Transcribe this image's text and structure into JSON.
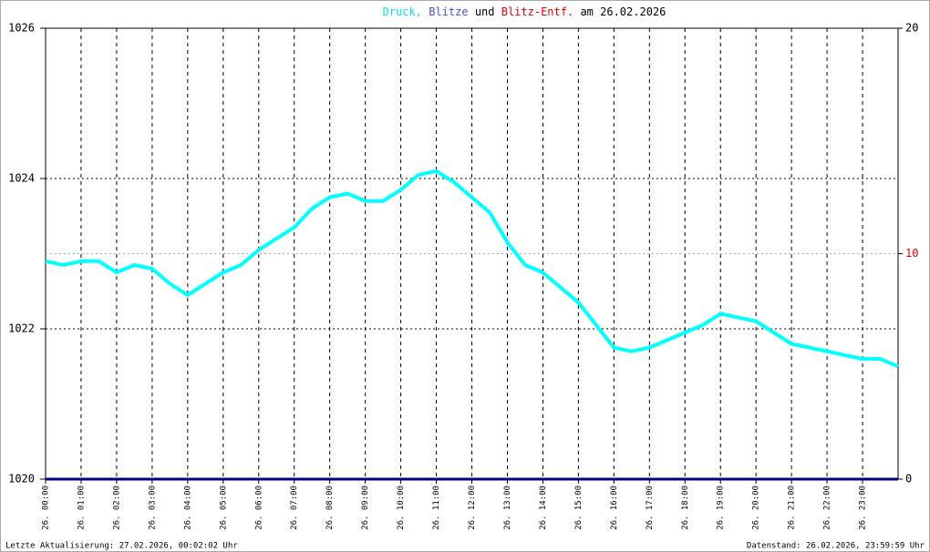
{
  "chart_data": {
    "type": "line",
    "title": [
      {
        "text": "Druck,",
        "color": "#00e0e0"
      },
      {
        "text": "Blitze",
        "color": "#5050c0"
      },
      {
        "text": "und",
        "color": "#000000"
      },
      {
        "text": "Blitz-Entf.",
        "color": "#e00000"
      },
      {
        "text": "am 26.02.2026",
        "color": "#000000"
      }
    ],
    "footer_left": "Letzte Aktualisierung: 27.02.2026, 00:02:02 Uhr",
    "footer_right": "Datenstand: 26.02.2026, 23:59:59 Uhr",
    "xlim": [
      0,
      24
    ],
    "xticks": [
      {
        "value": 0,
        "label": "26. 00:00"
      },
      {
        "value": 1,
        "label": "26. 01:00"
      },
      {
        "value": 2,
        "label": "26. 02:00"
      },
      {
        "value": 3,
        "label": "26. 03:00"
      },
      {
        "value": 4,
        "label": "26. 04:00"
      },
      {
        "value": 5,
        "label": "26. 05:00"
      },
      {
        "value": 6,
        "label": "26. 06:00"
      },
      {
        "value": 7,
        "label": "26. 07:00"
      },
      {
        "value": 8,
        "label": "26. 08:00"
      },
      {
        "value": 9,
        "label": "26. 09:00"
      },
      {
        "value": 10,
        "label": "26. 10:00"
      },
      {
        "value": 11,
        "label": "26. 11:00"
      },
      {
        "value": 12,
        "label": "26. 12:00"
      },
      {
        "value": 13,
        "label": "26. 13:00"
      },
      {
        "value": 14,
        "label": "26. 14:00"
      },
      {
        "value": 15,
        "label": "26. 15:00"
      },
      {
        "value": 16,
        "label": "26. 16:00"
      },
      {
        "value": 17,
        "label": "26. 17:00"
      },
      {
        "value": 18,
        "label": "26. 18:00"
      },
      {
        "value": 19,
        "label": "26. 19:00"
      },
      {
        "value": 20,
        "label": "26. 20:00"
      },
      {
        "value": 21,
        "label": "26. 21:00"
      },
      {
        "value": 22,
        "label": "26. 22:00"
      },
      {
        "value": 23,
        "label": "26. 23:00"
      }
    ],
    "ylim": [
      1020,
      1026
    ],
    "yticks": [
      1020,
      1022,
      1024,
      1026
    ],
    "y2lim": [
      0,
      20
    ],
    "y2ticks": [
      0,
      10,
      20
    ],
    "y2tick_colors": [
      "#000000",
      "#e00000",
      "#000000"
    ],
    "grid": true,
    "series": [
      {
        "color": "#00ffff",
        "axis": "y",
        "x": [
          0,
          0.5,
          1,
          1.5,
          2,
          2.5,
          3,
          3.5,
          4,
          4.5,
          5,
          5.5,
          6,
          6.5,
          7,
          7.5,
          8,
          8.5,
          9,
          9.5,
          10,
          10.5,
          11,
          11.5,
          12,
          12.5,
          13,
          13.5,
          14,
          14.5,
          15,
          15.5,
          16,
          16.5,
          17,
          17.5,
          18,
          18.5,
          19,
          19.5,
          20,
          20.5,
          21,
          21.5,
          22,
          22.5,
          23,
          23.5,
          24
        ],
        "values": [
          1022.9,
          1022.85,
          1022.9,
          1022.9,
          1022.75,
          1022.85,
          1022.8,
          1022.6,
          1022.45,
          1022.6,
          1022.75,
          1022.85,
          1023.05,
          1023.2,
          1023.35,
          1023.6,
          1023.75,
          1023.8,
          1023.7,
          1023.7,
          1023.85,
          1024.05,
          1024.1,
          1023.95,
          1023.75,
          1023.55,
          1023.15,
          1022.85,
          1022.75,
          1022.55,
          1022.35,
          1022.05,
          1021.75,
          1021.7,
          1021.75,
          1021.85,
          1021.95,
          1022.05,
          1022.2,
          1022.15,
          1022.1,
          1021.95,
          1021.8,
          1021.75,
          1021.7,
          1021.65,
          1021.6,
          1021.6,
          1021.5
        ]
      },
      {
        "color": "#000080",
        "axis": "y2",
        "x": [
          0,
          24
        ],
        "values": [
          0,
          0
        ]
      }
    ]
  }
}
